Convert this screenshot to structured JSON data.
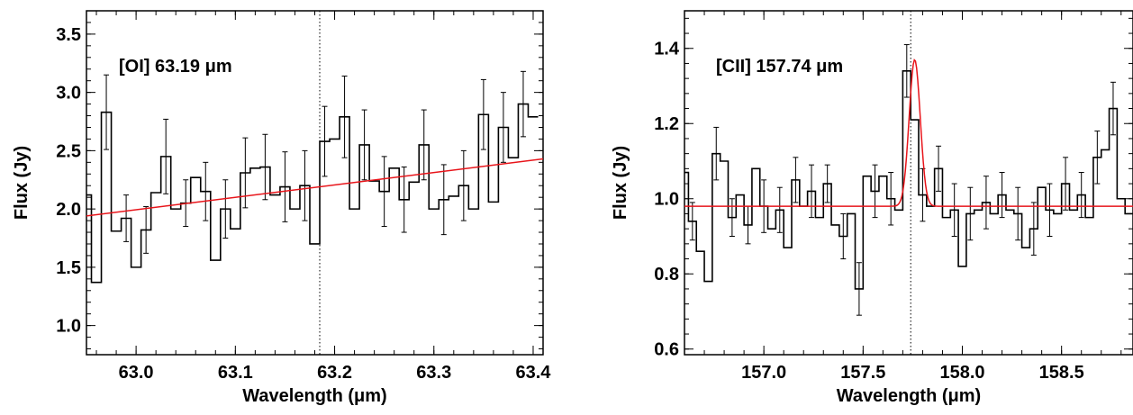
{
  "chart_data": [
    {
      "type": "line",
      "title": "[OI] 63.19 μm",
      "xlabel": "Wavelength (μm)",
      "ylabel": "Flux (Jy)",
      "xlim": [
        62.95,
        63.41
      ],
      "ylim": [
        0.75,
        3.7
      ],
      "xticks": [
        63.0,
        63.1,
        63.2,
        63.3,
        63.4
      ],
      "xtick_labels": [
        "63.0",
        "63.1",
        "63.2",
        "63.3",
        "63.4"
      ],
      "yticks": [
        1.0,
        1.5,
        2.0,
        2.5,
        3.0,
        3.5
      ],
      "ytick_labels": [
        "1.0",
        "1.5",
        "2.0",
        "2.5",
        "3.0",
        "3.5"
      ],
      "line_center": 63.185,
      "grid": false,
      "legend": "none",
      "colors": {
        "data": "#000000",
        "fit": "#e8141a"
      },
      "series": [
        {
          "style": "histogram-step",
          "x": [
            62.95,
            62.96,
            62.97,
            62.98,
            62.99,
            63.0,
            63.01,
            63.02,
            63.03,
            63.04,
            63.05,
            63.06,
            63.07,
            63.08,
            63.09,
            63.1,
            63.11,
            63.12,
            63.13,
            63.14,
            63.15,
            63.16,
            63.17,
            63.18,
            63.19,
            63.2,
            63.21,
            63.22,
            63.23,
            63.24,
            63.25,
            63.26,
            63.27,
            63.28,
            63.29,
            63.3,
            63.31,
            63.32,
            63.33,
            63.34,
            63.35,
            63.36,
            63.37,
            63.38,
            63.39,
            63.4
          ],
          "y": [
            2.12,
            1.37,
            2.83,
            1.81,
            1.92,
            1.5,
            1.82,
            2.14,
            2.45,
            2.0,
            2.05,
            2.27,
            2.15,
            1.56,
            2.0,
            1.83,
            2.31,
            2.35,
            2.36,
            2.12,
            2.19,
            2.0,
            2.2,
            1.7,
            2.58,
            2.6,
            2.79,
            2.0,
            2.55,
            2.24,
            2.15,
            2.35,
            2.08,
            2.23,
            2.55,
            2.0,
            2.08,
            2.11,
            2.2,
            2.0,
            2.81,
            2.06,
            2.7,
            2.44,
            2.9,
            2.79
          ],
          "err": [
            0,
            0,
            0.32,
            0,
            0.2,
            0,
            0.2,
            0,
            0.32,
            0,
            0.2,
            0,
            0.25,
            0,
            0.25,
            0,
            0.3,
            0,
            0.28,
            0,
            0.3,
            0,
            0.3,
            0,
            0.3,
            0,
            0.35,
            0,
            0.3,
            0,
            0.3,
            0,
            0.28,
            0,
            0.3,
            0,
            0.3,
            0,
            0.3,
            0,
            0.3,
            0,
            0.3,
            0,
            0.28,
            0
          ]
        },
        {
          "style": "line",
          "x": [
            62.95,
            63.41
          ],
          "y": [
            1.94,
            2.43
          ]
        }
      ]
    },
    {
      "type": "line",
      "title": "[CII] 157.74 μm",
      "xlabel": "Wavelength (μm)",
      "ylabel": "Flux (Jy)",
      "xlim": [
        156.6,
        158.86
      ],
      "ylim": [
        0.585,
        1.5
      ],
      "xticks": [
        157.0,
        157.5,
        158.0,
        158.5
      ],
      "xtick_labels": [
        "157.0",
        "157.5",
        "158.0",
        "158.5"
      ],
      "yticks": [
        0.6,
        0.8,
        1.0,
        1.2,
        1.4
      ],
      "ytick_labels": [
        "0.6",
        "0.8",
        "1.0",
        "1.2",
        "1.4"
      ],
      "line_center": 157.74,
      "grid": false,
      "legend": "none",
      "colors": {
        "data": "#000000",
        "fit": "#e8141a"
      },
      "series": [
        {
          "style": "histogram-step",
          "x": [
            156.6,
            156.64,
            156.68,
            156.72,
            156.76,
            156.8,
            156.84,
            156.88,
            156.92,
            156.96,
            157.0,
            157.04,
            157.08,
            157.12,
            157.16,
            157.2,
            157.24,
            157.28,
            157.32,
            157.36,
            157.4,
            157.44,
            157.48,
            157.52,
            157.56,
            157.6,
            157.64,
            157.68,
            157.72,
            157.76,
            157.8,
            157.84,
            157.88,
            157.92,
            157.96,
            158.0,
            158.04,
            158.08,
            158.12,
            158.16,
            158.2,
            158.24,
            158.28,
            158.32,
            158.36,
            158.4,
            158.44,
            158.48,
            158.52,
            158.56,
            158.6,
            158.64,
            158.68,
            158.72,
            158.76,
            158.8,
            158.84
          ],
          "y": [
            1.07,
            0.94,
            0.86,
            0.78,
            1.12,
            1.1,
            0.95,
            1.01,
            0.93,
            1.08,
            0.98,
            0.92,
            0.97,
            0.87,
            1.05,
            0.98,
            1.02,
            0.95,
            1.04,
            0.93,
            0.9,
            0.96,
            0.76,
            1.06,
            1.02,
            1.06,
            1.0,
            0.97,
            1.34,
            1.21,
            1.01,
            0.98,
            1.08,
            0.95,
            0.97,
            0.82,
            0.96,
            0.97,
            0.99,
            0.96,
            1.01,
            0.97,
            0.96,
            0.87,
            0.92,
            1.03,
            0.97,
            0.96,
            1.04,
            0.97,
            1.01,
            0.95,
            1.11,
            1.13,
            1.24,
            1.0,
            0.96
          ],
          "err": [
            0,
            0.05,
            0,
            0,
            0.07,
            0,
            0.05,
            0,
            0.05,
            0,
            0.07,
            0,
            0.06,
            0,
            0.06,
            0,
            0.07,
            0,
            0.05,
            0,
            0.06,
            0,
            0.07,
            0,
            0.07,
            0,
            0.07,
            0,
            0.07,
            0,
            0.07,
            0,
            0.06,
            0,
            0.07,
            0,
            0.07,
            0,
            0.07,
            0,
            0.06,
            0,
            0.07,
            0,
            0.07,
            0,
            0.07,
            0,
            0.07,
            0,
            0.06,
            0,
            0.07,
            0,
            0.07,
            0,
            0
          ]
        },
        {
          "style": "gaussian",
          "baseline": 0.98,
          "amplitude": 0.39,
          "center": 157.76,
          "sigma": 0.028
        }
      ]
    }
  ]
}
